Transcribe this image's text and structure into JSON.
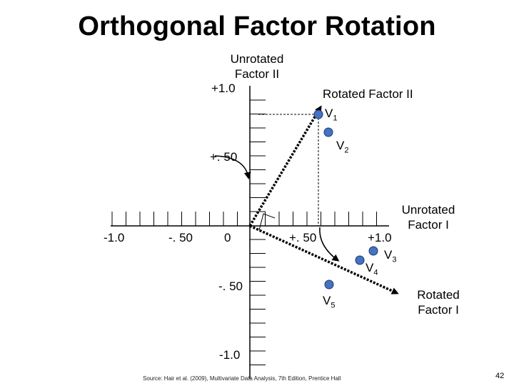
{
  "title": "Orthogonal Factor Rotation",
  "axes": {
    "unrotated_factor_ii": [
      "Unrotated",
      "Factor II"
    ],
    "rotated_factor_ii": "Rotated Factor II",
    "unrotated_factor_i": [
      "Unrotated",
      "Factor I"
    ],
    "rotated_factor_i": [
      "Rotated",
      "Factor I"
    ]
  },
  "ticks": {
    "y_plus_1": "+1.0",
    "y_plus_50": "+. 50",
    "y_minus_50": "-. 50",
    "y_minus_1": "-1.0",
    "x_minus_1": "-1.0",
    "x_minus_50": "-. 50",
    "x_zero": "0",
    "x_plus_50": "+. 50",
    "x_plus_1": "+1.0"
  },
  "variables": [
    {
      "name": "V",
      "sub": "1"
    },
    {
      "name": "V",
      "sub": "2"
    },
    {
      "name": "V",
      "sub": "3"
    },
    {
      "name": "V",
      "sub": "4"
    },
    {
      "name": "V",
      "sub": "5"
    }
  ],
  "source": "Source: Hair et al. (2009), Multivariate Data Analysis, 7th Edition, Prentice Hall",
  "page_number": "42",
  "colors": {
    "marker": "#4472c4",
    "marker_stroke": "#1f3864",
    "ink": "#000000"
  }
}
